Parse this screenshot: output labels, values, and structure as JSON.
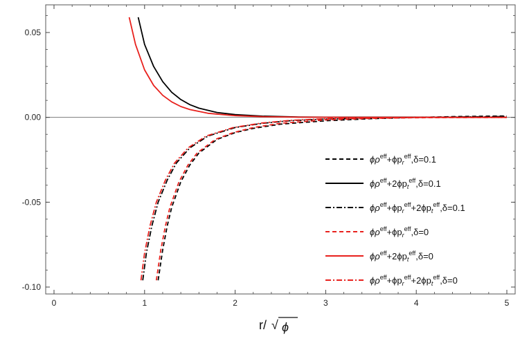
{
  "chart_data": {
    "type": "line",
    "xlabel": "r/√ϕ",
    "ylabel": "",
    "xlim": [
      0,
      5
    ],
    "ylim": [
      -0.1,
      0.06
    ],
    "x_ticks": [
      "0",
      "1",
      "2",
      "3",
      "4",
      "5"
    ],
    "y_ticks": [
      "0.05",
      "0.00",
      "-0.05",
      "-0.10"
    ],
    "grid": false,
    "legend_position": "right",
    "zero_line": true,
    "series": [
      {
        "name": "ϕρ^eff+ϕp_r^eff,δ=0.1",
        "color": "#000000",
        "dash": "dashed",
        "points": [
          [
            1.15,
            -0.096
          ],
          [
            1.2,
            -0.078
          ],
          [
            1.25,
            -0.064
          ],
          [
            1.3,
            -0.053
          ],
          [
            1.4,
            -0.038
          ],
          [
            1.5,
            -0.028
          ],
          [
            1.6,
            -0.021
          ],
          [
            1.8,
            -0.013
          ],
          [
            2.0,
            -0.009
          ],
          [
            2.2,
            -0.0065
          ],
          [
            2.5,
            -0.004
          ],
          [
            3.0,
            -0.002
          ],
          [
            3.5,
            -0.0008
          ],
          [
            4.0,
            0.0
          ],
          [
            4.5,
            0.0005
          ],
          [
            5.0,
            0.0008
          ]
        ]
      },
      {
        "name": "ϕρ^eff+2ϕp_t^eff,δ=0.1",
        "color": "#000000",
        "dash": "solid",
        "points": [
          [
            0.93,
            0.059
          ],
          [
            1.0,
            0.043
          ],
          [
            1.1,
            0.03
          ],
          [
            1.2,
            0.021
          ],
          [
            1.3,
            0.0148
          ],
          [
            1.4,
            0.0105
          ],
          [
            1.5,
            0.0075
          ],
          [
            1.6,
            0.0054
          ],
          [
            1.8,
            0.0029
          ],
          [
            2.0,
            0.0016
          ],
          [
            2.3,
            0.0007
          ],
          [
            2.7,
            0.0002
          ],
          [
            3.0,
            0.0001
          ],
          [
            4.0,
            0.0001
          ],
          [
            5.0,
            0.0001
          ]
        ]
      },
      {
        "name": "ϕρ^eff+ϕp_r^eff+2ϕp_t^eff,δ=0.1",
        "color": "#000000",
        "dash": "dashdot",
        "points": [
          [
            0.98,
            -0.096
          ],
          [
            1.02,
            -0.08
          ],
          [
            1.08,
            -0.064
          ],
          [
            1.15,
            -0.05
          ],
          [
            1.25,
            -0.037
          ],
          [
            1.35,
            -0.027
          ],
          [
            1.5,
            -0.018
          ],
          [
            1.7,
            -0.011
          ],
          [
            2.0,
            -0.006
          ],
          [
            2.3,
            -0.0035
          ],
          [
            2.6,
            -0.002
          ],
          [
            3.0,
            -0.001
          ],
          [
            3.5,
            -0.0004
          ],
          [
            4.0,
            0.0
          ],
          [
            5.0,
            0.0005
          ]
        ]
      },
      {
        "name": "ϕρ^eff+ϕp_r^eff,δ=0",
        "color": "#e8201c",
        "dash": "dashed",
        "points": [
          [
            1.13,
            -0.096
          ],
          [
            1.18,
            -0.078
          ],
          [
            1.23,
            -0.064
          ],
          [
            1.28,
            -0.053
          ],
          [
            1.38,
            -0.038
          ],
          [
            1.48,
            -0.028
          ],
          [
            1.58,
            -0.021
          ],
          [
            1.78,
            -0.013
          ],
          [
            1.98,
            -0.009
          ],
          [
            2.2,
            -0.006
          ],
          [
            2.5,
            -0.0035
          ],
          [
            3.0,
            -0.0015
          ],
          [
            3.5,
            -0.0006
          ],
          [
            4.0,
            -0.0002
          ],
          [
            5.0,
            0.0
          ]
        ]
      },
      {
        "name": "ϕρ^eff+2ϕp_t^eff,δ=0",
        "color": "#e8201c",
        "dash": "solid",
        "points": [
          [
            0.83,
            0.059
          ],
          [
            0.9,
            0.043
          ],
          [
            1.0,
            0.028
          ],
          [
            1.1,
            0.0188
          ],
          [
            1.2,
            0.013
          ],
          [
            1.3,
            0.0091
          ],
          [
            1.4,
            0.0064
          ],
          [
            1.5,
            0.0046
          ],
          [
            1.7,
            0.0024
          ],
          [
            2.0,
            0.001
          ],
          [
            2.3,
            0.0004
          ],
          [
            2.7,
            0.0001
          ],
          [
            3.5,
            0.0
          ],
          [
            5.0,
            0.0
          ]
        ]
      },
      {
        "name": "ϕρ^eff+ϕp_r^eff+2ϕp_t^eff,δ=0",
        "color": "#e8201c",
        "dash": "dashdot",
        "points": [
          [
            0.96,
            -0.096
          ],
          [
            1.0,
            -0.08
          ],
          [
            1.06,
            -0.064
          ],
          [
            1.13,
            -0.05
          ],
          [
            1.23,
            -0.037
          ],
          [
            1.33,
            -0.027
          ],
          [
            1.48,
            -0.018
          ],
          [
            1.68,
            -0.011
          ],
          [
            1.98,
            -0.006
          ],
          [
            2.3,
            -0.0033
          ],
          [
            2.6,
            -0.0018
          ],
          [
            3.0,
            -0.0008
          ],
          [
            3.5,
            -0.0003
          ],
          [
            4.0,
            0.0
          ],
          [
            5.0,
            0.0
          ]
        ]
      }
    ]
  },
  "legend": [
    {
      "pre": "ϕρ",
      "s1": "eff",
      "mid": "+ϕp",
      "sub1": "r",
      "s2": "eff",
      "mid2": "",
      "sub2": "",
      "s3": "",
      "post": ",δ=0.1"
    },
    {
      "pre": "ϕρ",
      "s1": "eff",
      "mid": "+2ϕp",
      "sub1": "t",
      "s2": "eff",
      "mid2": "",
      "sub2": "",
      "s3": "",
      "post": ",δ=0.1"
    },
    {
      "pre": "ϕρ",
      "s1": "eff",
      "mid": "+ϕp",
      "sub1": "r",
      "s2": "eff",
      "mid2": "+2ϕp",
      "sub2": "t",
      "s3": "eff",
      "post": ",δ=0.1"
    },
    {
      "pre": "ϕρ",
      "s1": "eff",
      "mid": "+ϕp",
      "sub1": "r",
      "s2": "eff",
      "mid2": "",
      "sub2": "",
      "s3": "",
      "post": ",δ=0"
    },
    {
      "pre": "ϕρ",
      "s1": "eff",
      "mid": "+2ϕp",
      "sub1": "t",
      "s2": "eff",
      "mid2": "",
      "sub2": "",
      "s3": "",
      "post": ",δ=0"
    },
    {
      "pre": "ϕρ",
      "s1": "eff",
      "mid": "+ϕp",
      "sub1": "r",
      "s2": "eff",
      "mid2": "+2ϕp",
      "sub2": "t",
      "s3": "eff",
      "post": ",δ=0"
    }
  ]
}
